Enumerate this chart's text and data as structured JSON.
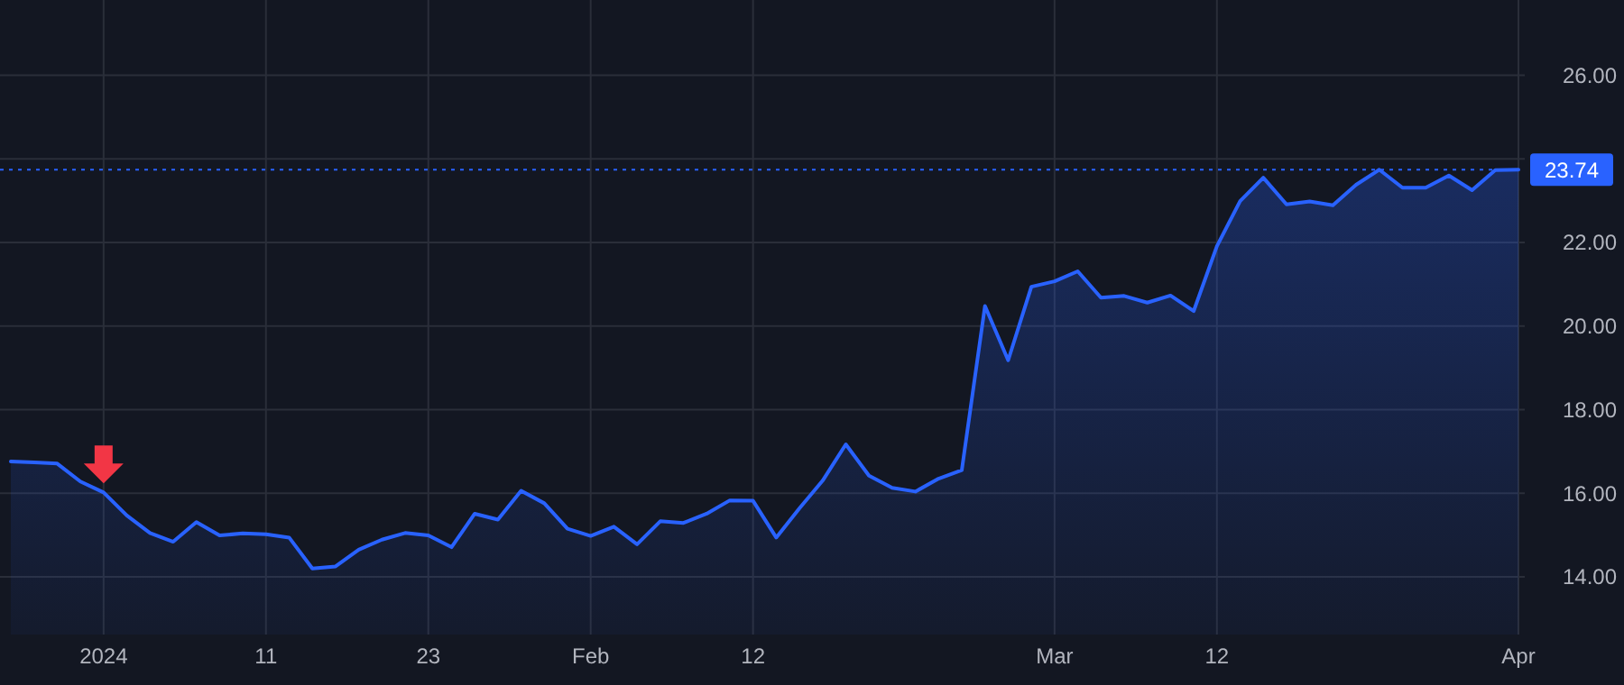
{
  "chart_data": {
    "type": "area",
    "categories": [
      null,
      null,
      null,
      null,
      "2024",
      null,
      null,
      null,
      null,
      null,
      null,
      "11",
      null,
      null,
      null,
      null,
      null,
      null,
      "23",
      null,
      null,
      null,
      null,
      null,
      null,
      "Feb",
      null,
      null,
      null,
      null,
      null,
      null,
      "12",
      null,
      null,
      null,
      null,
      null,
      null,
      null,
      null,
      null,
      null,
      null,
      null,
      "Mar",
      null,
      null,
      null,
      null,
      null,
      null,
      "12",
      null,
      null,
      null,
      null,
      null,
      null,
      null,
      null,
      null,
      null,
      null,
      null,
      "Apr"
    ],
    "series": [
      {
        "color": "#2962ff",
        "values": [
          16.76,
          16.74,
          16.71,
          16.28,
          16.02,
          15.47,
          15.05,
          14.84,
          15.31,
          14.99,
          15.04,
          15.02,
          14.94,
          14.2,
          14.25,
          14.65,
          14.89,
          15.05,
          14.99,
          14.71,
          15.51,
          15.37,
          16.06,
          15.76,
          15.15,
          14.98,
          15.2,
          14.78,
          15.33,
          15.29,
          15.51,
          15.83,
          15.82,
          14.94,
          15.64,
          16.3,
          17.17,
          16.42,
          16.13,
          16.04,
          16.35,
          16.55,
          20.48,
          19.18,
          20.94,
          21.07,
          21.31,
          20.68,
          20.72,
          20.56,
          20.73,
          20.36,
          21.91,
          22.99,
          23.55,
          22.91,
          22.98,
          22.89,
          23.38,
          23.74,
          23.31,
          23.31,
          23.6,
          23.25,
          23.73,
          23.74
        ]
      }
    ],
    "ylim": [
      12.62,
      27.8
    ],
    "yticks": [
      {
        "value": 14,
        "label": "14.00"
      },
      {
        "value": 16,
        "label": "16.00"
      },
      {
        "value": 18,
        "label": "18.00"
      },
      {
        "value": 20,
        "label": "20.00"
      },
      {
        "value": 22,
        "label": "22.00"
      },
      {
        "value": 24,
        "label": null
      },
      {
        "value": 26,
        "label": "26.00"
      }
    ],
    "ref_lines": [
      {
        "axis": "y",
        "value": 23.74,
        "label": "23.74",
        "color": "#2962ff",
        "line_style": "dotted"
      }
    ],
    "grid": true
  }
}
